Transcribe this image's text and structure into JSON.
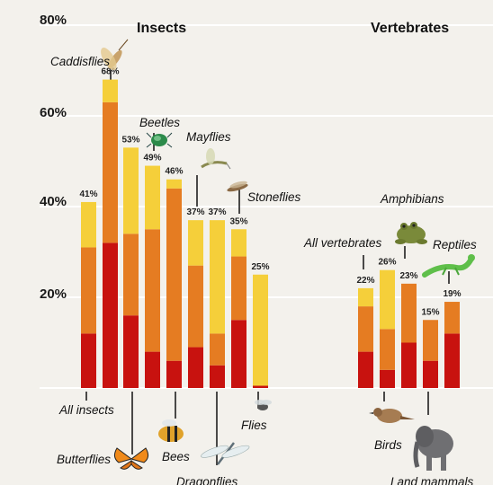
{
  "chart_data": {
    "type": "bar",
    "stacked": true,
    "y_ticks": [
      "80%",
      "60%",
      "40%",
      "20%"
    ],
    "ylim": [
      0,
      80
    ],
    "grid": true,
    "groups": [
      "Insects",
      "Vertebrates"
    ],
    "categories": [
      "All insects",
      "Caddisflies",
      "Butterflies",
      "Beetles",
      "Bees",
      "Mayflies",
      "Dragonflies",
      "Stoneflies",
      "Flies",
      "All vertebrates",
      "Birds",
      "Amphibians",
      "Land mammals",
      "Reptiles"
    ],
    "totals": [
      41,
      68,
      53,
      49,
      46,
      37,
      37,
      35,
      25,
      22,
      26,
      23,
      15,
      19
    ],
    "total_labels": [
      "41%",
      "68%",
      "53%",
      "49%",
      "46%",
      "37%",
      "37%",
      "35%",
      "25%",
      "22%",
      "26%",
      "23%",
      "15%",
      "19%"
    ],
    "series": [
      {
        "values": [
          12,
          32,
          16,
          8,
          6,
          9,
          5,
          15,
          0.5,
          8,
          4,
          10,
          6,
          12
        ]
      },
      {
        "values": [
          19,
          31,
          18,
          27,
          38,
          18,
          7,
          14,
          0,
          10,
          9,
          13,
          9,
          7
        ]
      },
      {
        "values": [
          10,
          5,
          19,
          14,
          2,
          10,
          25,
          6,
          24.5,
          4,
          13,
          0,
          0,
          0
        ]
      }
    ],
    "colors": [
      "#c8120f",
      "#e57c22",
      "#f5cf3a"
    ]
  },
  "icons": [
    "caddisfly-icon",
    "beetle-icon",
    "mayfly-icon",
    "stonefly-icon",
    "frog-icon",
    "lizard-icon",
    "butterfly-icon",
    "bee-icon",
    "dragonfly-icon",
    "fly-icon",
    "bird-icon",
    "elephant-icon"
  ]
}
